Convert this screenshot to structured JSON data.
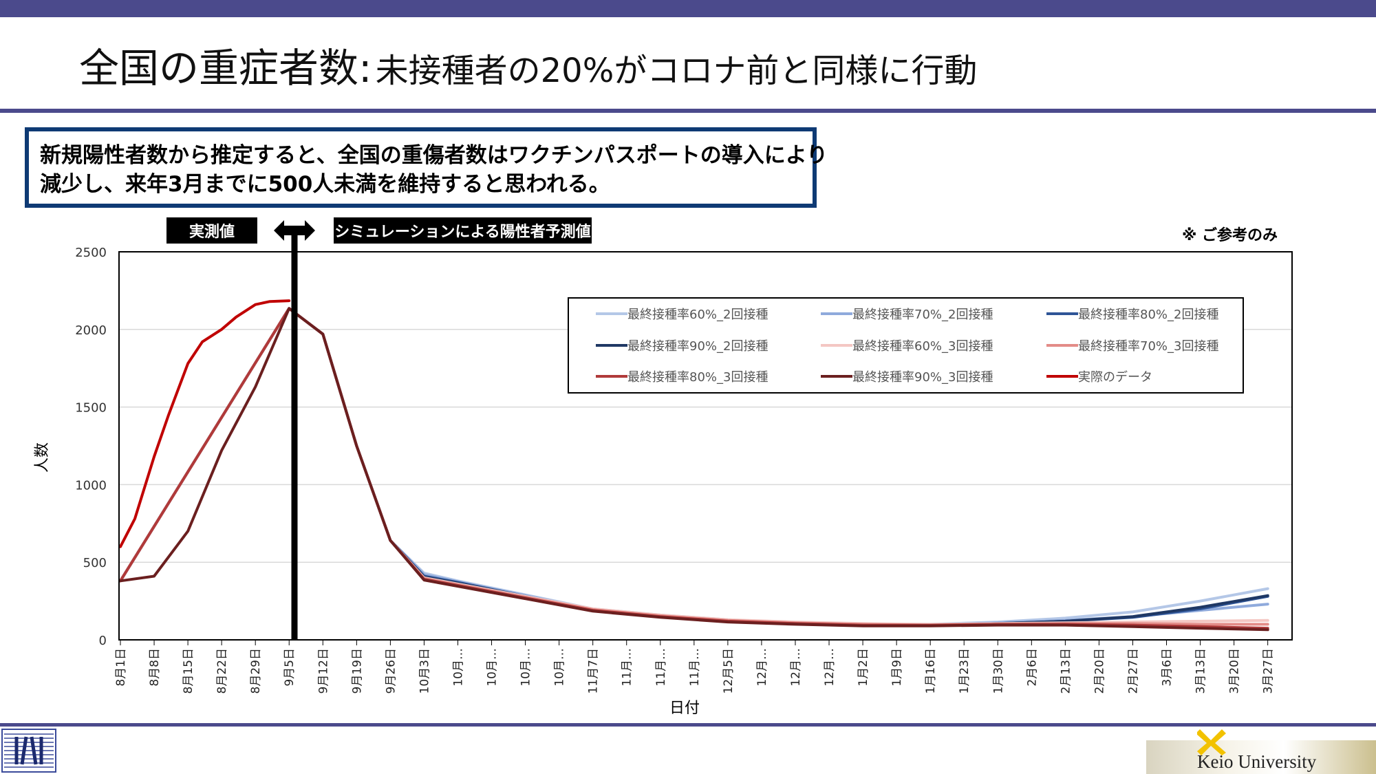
{
  "header": {
    "title_main": "全国の重症者数:",
    "title_sub": "未接種者の20%がコロナ前と同様に行動"
  },
  "callout": {
    "line1": "新規陽性者数から推定すると、全国の重傷者数はワクチンパスポートの導入により",
    "line2": "減少し、来年3月までに500人未満を維持すると思われる。"
  },
  "tags": {
    "measured": "実測値",
    "simulation": "シミュレーションによる陽性者予測値"
  },
  "note": "※ ご参考のみ",
  "colors": {
    "theme_bar": "#4b4a8c",
    "callout_border": "#0e3a74",
    "actual_data": "#c00000"
  },
  "footer": {
    "university": "Keio University"
  },
  "chart_data": {
    "type": "line",
    "title": "",
    "xlabel": "日付",
    "ylabel": "人数",
    "ylim": [
      0,
      2500
    ],
    "yticks": [
      0,
      500,
      1000,
      1500,
      2000,
      2500
    ],
    "grid": "horizontal",
    "legend_position": "top-right",
    "x_tick_labels": [
      "8月1日",
      "8月8日",
      "8月15日",
      "8月22日",
      "8月29日",
      "9月5日",
      "9月12日",
      "9月19日",
      "9月26日",
      "10月3日",
      "10月…",
      "10月…",
      "10月…",
      "10月…",
      "11月7日",
      "11月…",
      "11月…",
      "11月…",
      "12月5日",
      "12月…",
      "12月…",
      "12月…",
      "1月2日",
      "1月9日",
      "1月16日",
      "1月23日",
      "1月30日",
      "2月6日",
      "2月13日",
      "2月20日",
      "2月27日",
      "3月6日",
      "3月13日",
      "3月20日",
      "3月27日"
    ],
    "marker_date": "9月5日",
    "series": [
      {
        "name": "最終接種率60%_2回接種",
        "color": "#b4c7e7",
        "dashed": false,
        "x": [
          0,
          35,
          42,
          49,
          56,
          63,
          70,
          84,
          98,
          112,
          126,
          140,
          154,
          168,
          182,
          196,
          210,
          224,
          238
        ],
        "y": [
          380,
          2135,
          1970,
          1250,
          640,
          430,
          380,
          290,
          200,
          160,
          130,
          110,
          100,
          100,
          115,
          140,
          180,
          250,
          330
        ]
      },
      {
        "name": "最終接種率70%_2回接種",
        "color": "#8faadc",
        "dashed": false,
        "x": [
          0,
          35,
          42,
          49,
          56,
          63,
          70,
          84,
          98,
          112,
          126,
          140,
          154,
          168,
          182,
          196,
          210,
          224,
          238
        ],
        "y": [
          380,
          2135,
          1970,
          1250,
          640,
          420,
          375,
          285,
          195,
          155,
          125,
          105,
          95,
          95,
          110,
          125,
          150,
          190,
          230
        ]
      },
      {
        "name": "最終接種率80%_2回接種",
        "color": "#2f5597",
        "dashed": false,
        "x": [
          0,
          35,
          42,
          49,
          56,
          63,
          70,
          84,
          98,
          112,
          126,
          140,
          154,
          168,
          182,
          196,
          210,
          224,
          238
        ],
        "y": [
          380,
          2135,
          1970,
          1250,
          640,
          410,
          370,
          280,
          195,
          155,
          125,
          105,
          95,
          95,
          105,
          120,
          145,
          200,
          280
        ]
      },
      {
        "name": "最終接種率90%_2回接種",
        "color": "#1f3864",
        "dashed": false,
        "x": [
          0,
          35,
          42,
          49,
          56,
          63,
          70,
          84,
          98,
          112,
          126,
          140,
          154,
          168,
          182,
          196,
          210,
          224,
          238
        ],
        "y": [
          380,
          2135,
          1970,
          1250,
          640,
          405,
          365,
          280,
          195,
          155,
          125,
          105,
          95,
          95,
          105,
          120,
          150,
          210,
          285
        ]
      },
      {
        "name": "最終接種率60%_3回接種",
        "color": "#f4c7c3",
        "dashed": false,
        "x": [
          0,
          35,
          42,
          49,
          56,
          63,
          70,
          84,
          98,
          112,
          126,
          140,
          154,
          168,
          182,
          196,
          210,
          224,
          238
        ],
        "y": [
          380,
          2135,
          1970,
          1250,
          640,
          400,
          360,
          280,
          200,
          160,
          130,
          115,
          105,
          100,
          105,
          110,
          115,
          120,
          125
        ]
      },
      {
        "name": "最終接種率70%_3回接種",
        "color": "#e38c88",
        "dashed": false,
        "x": [
          0,
          35,
          42,
          49,
          56,
          63,
          70,
          84,
          98,
          112,
          126,
          140,
          154,
          168,
          182,
          196,
          210,
          224,
          238
        ],
        "y": [
          380,
          2135,
          1970,
          1250,
          640,
          395,
          355,
          275,
          195,
          155,
          125,
          110,
          100,
          95,
          100,
          105,
          105,
          100,
          100
        ]
      },
      {
        "name": "最終接種率80%_3回接種",
        "color": "#b03a3a",
        "dashed": false,
        "x": [
          0,
          35,
          42,
          49,
          56,
          63,
          70,
          84,
          98,
          112,
          126,
          140,
          154,
          168,
          182,
          196,
          210,
          224,
          238
        ],
        "y": [
          380,
          2135,
          1970,
          1250,
          640,
          390,
          350,
          270,
          190,
          150,
          120,
          105,
          95,
          95,
          100,
          100,
          95,
          85,
          75
        ]
      },
      {
        "name": "最終接種率90%_3回接種",
        "color": "#6b1f1f",
        "dashed": false,
        "x": [
          0,
          7,
          14,
          21,
          28,
          35,
          42,
          49,
          56,
          63,
          70,
          84,
          98,
          112,
          126,
          140,
          154,
          168,
          182,
          196,
          210,
          224,
          238
        ],
        "y": [
          380,
          410,
          700,
          1220,
          1630,
          2135,
          1970,
          1250,
          640,
          385,
          345,
          265,
          185,
          145,
          115,
          100,
          90,
          90,
          95,
          95,
          85,
          75,
          65
        ]
      },
      {
        "name": "実際のデータ",
        "color": "#c00000",
        "dashed": false,
        "x": [
          0,
          3,
          7,
          10,
          14,
          17,
          21,
          24,
          28,
          31,
          35
        ],
        "y": [
          600,
          780,
          1180,
          1450,
          1780,
          1920,
          2000,
          2080,
          2160,
          2180,
          2185
        ]
      }
    ]
  }
}
